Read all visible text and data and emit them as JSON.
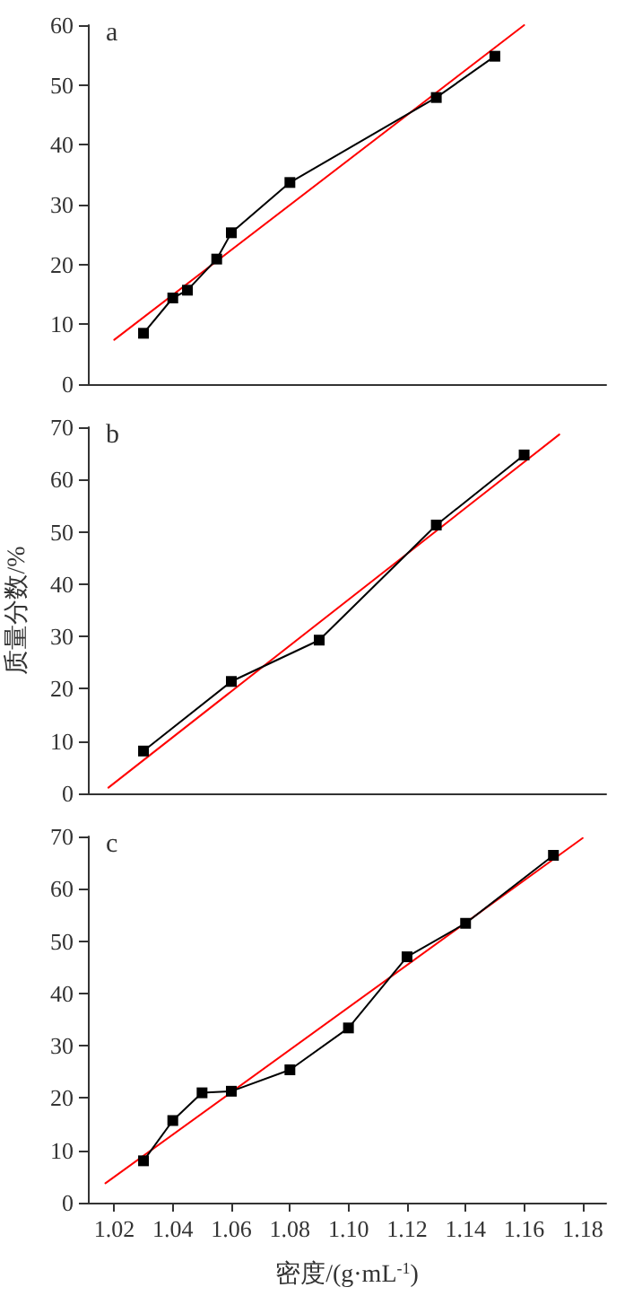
{
  "chart_data": [
    {
      "type": "line",
      "title": "a",
      "xlim": [
        1.011,
        1.188
      ],
      "ylim": [
        0,
        60
      ],
      "yticks": [
        0,
        10,
        20,
        30,
        40,
        50,
        60
      ],
      "tick_labels": "y",
      "grid": false,
      "series": [
        {
          "color": "#000000",
          "marker": "square",
          "x": [
            1.03,
            1.04,
            1.045,
            1.055,
            1.06,
            1.08,
            1.13,
            1.15
          ],
          "values": [
            8.5,
            14.4,
            15.7,
            20.9,
            25.3,
            33.7,
            47.9,
            54.8
          ]
        },
        {
          "color": "#ff0000",
          "marker": "none",
          "x": [
            1.02,
            1.16
          ],
          "values": [
            7.4,
            60
          ]
        }
      ]
    },
    {
      "type": "line",
      "title": "b",
      "ylabel": "质量分数/%",
      "xlim": [
        1.011,
        1.188
      ],
      "ylim": [
        0,
        70
      ],
      "yticks": [
        0,
        10,
        20,
        30,
        40,
        50,
        60,
        70
      ],
      "tick_labels": "y",
      "grid": false,
      "series": [
        {
          "color": "#000000",
          "marker": "square",
          "x": [
            1.03,
            1.06,
            1.09,
            1.13,
            1.16
          ],
          "values": [
            8.1,
            21.4,
            29.3,
            51.3,
            64.7
          ]
        },
        {
          "color": "#ff0000",
          "marker": "none",
          "x": [
            1.018,
            1.172
          ],
          "values": [
            1.1,
            68.6
          ]
        }
      ]
    },
    {
      "type": "line",
      "title": "c",
      "xlabel": "密度/(g·mL$^{-1}$)",
      "xlim": [
        1.011,
        1.188
      ],
      "ylim": [
        0,
        70
      ],
      "xticks": [
        1.02,
        1.04,
        1.06,
        1.08,
        {
          "value": 1.1,
          "label": "1.10"
        },
        1.12,
        1.14,
        1.16,
        1.18
      ],
      "yticks": [
        0,
        10,
        20,
        30,
        40,
        50,
        60,
        70
      ],
      "grid": false,
      "series": [
        {
          "color": "#000000",
          "marker": "square",
          "x": [
            1.03,
            1.04,
            1.05,
            1.06,
            1.08,
            1.1,
            1.12,
            1.14,
            1.17
          ],
          "values": [
            8.0,
            15.7,
            21.0,
            21.3,
            25.4,
            33.4,
            47.0,
            53.4,
            66.4
          ]
        },
        {
          "color": "#ff0000",
          "marker": "none",
          "x": [
            1.017,
            1.18
          ],
          "values": [
            3.7,
            69.7
          ]
        }
      ]
    }
  ]
}
